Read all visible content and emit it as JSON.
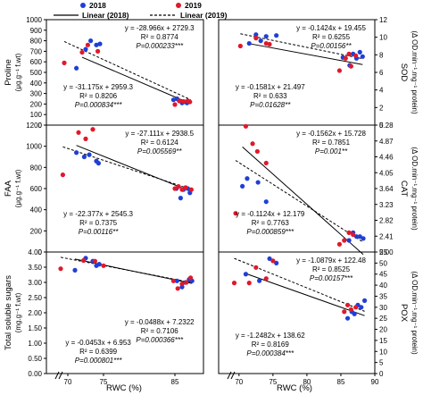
{
  "legend": {
    "series_2018": "2018",
    "series_2019": "2019",
    "color_2018": "#1f3fd6",
    "color_2019": "#e0192a",
    "linear_2018": "Linear (2018)",
    "linear_2019": "Linear (2019)"
  },
  "x_axis_label": "RWC (%)",
  "chart_data": [
    {
      "id": "proline",
      "type": "scatter",
      "col": 0,
      "row": 0,
      "ylabel": "Proline",
      "ylabel_unit": "(μg.g⁻¹ f.wt)",
      "xlim": [
        67,
        89
      ],
      "ylim": [
        0,
        1000
      ],
      "yticks": [
        0,
        100,
        200,
        300,
        400,
        500,
        600,
        700,
        800,
        900,
        1000
      ],
      "series": [
        {
          "name": "2018",
          "points": [
            [
              71.2,
              540
            ],
            [
              72.5,
              720
            ],
            [
              73.2,
              800
            ],
            [
              74.0,
              760
            ],
            [
              74.5,
              770
            ],
            [
              84.8,
              240
            ],
            [
              85.3,
              250
            ],
            [
              86.0,
              210
            ],
            [
              86.4,
              220
            ],
            [
              86.7,
              210
            ]
          ]
        },
        {
          "name": "2019",
          "points": [
            [
              69.5,
              590
            ],
            [
              72.0,
              690
            ],
            [
              72.8,
              760
            ],
            [
              74.2,
              700
            ],
            [
              85.0,
              195
            ],
            [
              85.6,
              230
            ],
            [
              86.2,
              225
            ],
            [
              86.8,
              230
            ],
            [
              87.1,
              220
            ]
          ]
        }
      ],
      "fits": [
        {
          "series": "2018",
          "eq": "y = -28.966x + 2729.3",
          "r2": "R² = 0.8774",
          "p": "P=0.000233***",
          "x": [
            72,
            87.2
          ]
        },
        {
          "series": "2019",
          "eq": "y = -31.175x + 2959.3",
          "r2": "R² = 0.8206",
          "p": "P=0.000834***",
          "x": [
            69.5,
            87.2
          ]
        }
      ],
      "eq_pos": [
        "top",
        "bottom"
      ]
    },
    {
      "id": "sod",
      "type": "scatter",
      "col": 1,
      "row": 0,
      "ylabel": "SOD",
      "ylabel_unit": "(Δ OD.min⁻¹.mg⁻¹ protein)",
      "xlim": [
        67,
        90
      ],
      "ylim": [
        0,
        12
      ],
      "yticks": [
        0,
        2,
        4,
        6,
        8,
        10,
        12
      ],
      "series": [
        {
          "name": "2018",
          "points": [
            [
              71.5,
              9.3
            ],
            [
              72.5,
              10.3
            ],
            [
              73.2,
              9.6
            ],
            [
              74.0,
              10.1
            ],
            [
              75.5,
              10.2
            ],
            [
              85.3,
              7.7
            ],
            [
              86.3,
              6.8
            ],
            [
              86.8,
              8.1
            ],
            [
              87.3,
              7.6
            ],
            [
              87.8,
              8.3
            ],
            [
              88.2,
              7.8
            ]
          ]
        },
        {
          "name": "2019",
          "points": [
            [
              70.2,
              9.0
            ],
            [
              72.5,
              9.9
            ],
            [
              74.0,
              9.3
            ],
            [
              74.5,
              9.2
            ],
            [
              84.8,
              6.2
            ],
            [
              85.7,
              7.6
            ],
            [
              86.2,
              8.1
            ],
            [
              86.5,
              6.7
            ],
            [
              87.2,
              7.9
            ]
          ]
        }
      ],
      "fits": [
        {
          "series": "2018",
          "eq": "y = -0.1424x + 19.455",
          "r2": "R² = 0.6255",
          "p": "P=0.00156**",
          "x": [
            71.5,
            88.2
          ]
        },
        {
          "series": "2019",
          "eq": "y = -0.1581x + 21.497",
          "r2": "R² = 0.633",
          "p": "P=0.01628**",
          "x": [
            70.2,
            88.2
          ]
        }
      ],
      "eq_pos": [
        "top",
        "bottom"
      ]
    },
    {
      "id": "faa",
      "type": "scatter",
      "col": 0,
      "row": 1,
      "ylabel": "FAA",
      "ylabel_unit": "(μg.g⁻¹ f.wt)",
      "xlim": [
        67,
        89
      ],
      "ylim": [
        0,
        1200
      ],
      "yticks": [
        0,
        200,
        400,
        600,
        800,
        1000,
        1200
      ],
      "series": [
        {
          "name": "2018",
          "points": [
            [
              71.2,
              940
            ],
            [
              72.3,
              900
            ],
            [
              73.0,
              920
            ],
            [
              74.0,
              860
            ],
            [
              74.3,
              840
            ],
            [
              85.2,
              600
            ],
            [
              85.8,
              510
            ],
            [
              86.2,
              590
            ],
            [
              86.8,
              600
            ],
            [
              87.1,
              560
            ]
          ]
        },
        {
          "name": "2019",
          "points": [
            [
              69.3,
              730
            ],
            [
              71.5,
              1130
            ],
            [
              72.5,
              1070
            ],
            [
              73.5,
              1160
            ],
            [
              85.0,
              600
            ],
            [
              85.5,
              620
            ],
            [
              86.0,
              590
            ],
            [
              86.5,
              610
            ],
            [
              87.3,
              590
            ]
          ]
        }
      ],
      "fits": [
        {
          "series": "2018",
          "eq": "y = -27.111x + 2938.5",
          "r2": "R² = 0.6124",
          "p": "P=0.005569**",
          "x": [
            71.2,
            87.2
          ]
        },
        {
          "series": "2019",
          "eq": "y = -22.377x + 2545.3",
          "r2": "R² = 0.7375",
          "p": "P=0.00116**",
          "x": [
            69.3,
            87.2
          ]
        }
      ],
      "eq_pos": [
        "top",
        "bottom"
      ]
    },
    {
      "id": "cat",
      "type": "scatter",
      "col": 1,
      "row": 1,
      "ylabel": "CAT",
      "ylabel_unit": "(Δ OD.min⁻¹.mg⁻¹ protein)",
      "xlim": [
        67,
        90
      ],
      "ylim": [
        2.0,
        5.28
      ],
      "yticks": [
        2.0,
        2.41,
        2.82,
        3.23,
        3.64,
        4.05,
        4.46,
        4.87,
        5.28
      ],
      "tick_labels": [
        "2.00",
        "2.41",
        "2.82",
        "3.23",
        "3.64",
        "4.05",
        "4.46",
        "4.87",
        "5.28"
      ],
      "series": [
        {
          "name": "2018",
          "points": [
            [
              70.5,
              3.7
            ],
            [
              71.2,
              3.9
            ],
            [
              72.8,
              3.8
            ],
            [
              74.0,
              3.3
            ],
            [
              86.2,
              2.3
            ],
            [
              86.8,
              2.5
            ],
            [
              87.3,
              2.4
            ],
            [
              87.8,
              2.4
            ],
            [
              88.3,
              2.35
            ]
          ]
        },
        {
          "name": "2019",
          "points": [
            [
              69.5,
              3.0
            ],
            [
              71.0,
              5.25
            ],
            [
              72.0,
              4.8
            ],
            [
              72.7,
              4.6
            ],
            [
              74.0,
              4.3
            ],
            [
              84.8,
              2.2
            ],
            [
              85.5,
              2.3
            ],
            [
              86.2,
              2.5
            ],
            [
              86.8,
              2.45
            ]
          ]
        }
      ],
      "fits": [
        {
          "series": "2018",
          "eq": "y = -0.1562x + 15.728",
          "r2": "R² = 0.7851",
          "p": "P=0.001**",
          "x": [
            70.5,
            88.3
          ]
        },
        {
          "series": "2019",
          "eq": "y = -0.1124x + 12.179",
          "r2": "R² = 0.7763",
          "p": "P=0.000859***",
          "x": [
            69.5,
            88.3
          ]
        }
      ],
      "eq_pos": [
        "top",
        "bottom"
      ]
    },
    {
      "id": "sugars",
      "type": "scatter",
      "col": 0,
      "row": 2,
      "ylabel": "Total soluble sugars",
      "ylabel_unit": "(mg.g⁻¹ f.wt)",
      "xlim": [
        67,
        89
      ],
      "ylim": [
        0,
        4.0
      ],
      "yticks": [
        0,
        0.5,
        1.0,
        1.5,
        2.0,
        2.5,
        3.0,
        3.5,
        4.0
      ],
      "tick_labels": [
        "0.00",
        "0.50",
        "1.00",
        "1.50",
        "2.00",
        "2.50",
        "3.00",
        "3.50",
        "4.00"
      ],
      "series": [
        {
          "name": "2018",
          "points": [
            [
              71.0,
              3.4
            ],
            [
              72.5,
              3.8
            ],
            [
              73.5,
              3.7
            ],
            [
              74.0,
              3.55
            ],
            [
              74.4,
              3.6
            ],
            [
              85.3,
              3.05
            ],
            [
              86.0,
              2.85
            ],
            [
              86.5,
              3.0
            ],
            [
              87.0,
              3.1
            ],
            [
              87.4,
              3.05
            ]
          ]
        },
        {
          "name": "2019",
          "points": [
            [
              69.0,
              3.45
            ],
            [
              72.2,
              3.72
            ],
            [
              73.8,
              3.7
            ],
            [
              75.0,
              3.55
            ],
            [
              84.8,
              3.05
            ],
            [
              85.4,
              2.8
            ],
            [
              86.0,
              2.95
            ],
            [
              86.6,
              3.0
            ],
            [
              87.2,
              3.15
            ]
          ]
        }
      ],
      "fits": [
        {
          "series": "2018",
          "eq": "y = -0.0488x + 7.2322",
          "r2": "R² = 0.7106",
          "p": "P=0.000366***",
          "x": [
            71.0,
            87.4
          ]
        },
        {
          "series": "2019",
          "eq": "y = -0.0453x + 6.953",
          "r2": "R² = 0.6399",
          "p": "P=0.000801***",
          "x": [
            69.0,
            87.4
          ]
        }
      ],
      "eq_pos": [
        "bottom-right",
        "bottom-left"
      ]
    },
    {
      "id": "pox",
      "type": "scatter",
      "col": 1,
      "row": 2,
      "ylabel": "POX",
      "ylabel_unit": "(Δ OD.min⁻¹.mg⁻¹ protein)",
      "xlim": [
        67,
        90
      ],
      "ylim": [
        0,
        55
      ],
      "yticks": [
        0,
        5,
        10,
        15,
        20,
        25,
        30,
        35,
        40,
        45,
        50,
        55
      ],
      "series": [
        {
          "name": "2018",
          "points": [
            [
              71.0,
              45
            ],
            [
              73.0,
              42
            ],
            [
              74.5,
              52
            ],
            [
              75.5,
              50
            ],
            [
              86.0,
              25
            ],
            [
              86.6,
              28
            ],
            [
              87.0,
              27
            ],
            [
              87.5,
              31
            ],
            [
              88.0,
              30
            ],
            [
              88.5,
              33
            ]
          ]
        },
        {
          "name": "2019",
          "points": [
            [
              69.3,
              41
            ],
            [
              71.5,
              41
            ],
            [
              72.5,
              48
            ],
            [
              74.0,
              43
            ],
            [
              75.0,
              51
            ],
            [
              85.5,
              28
            ],
            [
              86.0,
              31
            ],
            [
              86.5,
              29
            ],
            [
              87.2,
              30
            ]
          ]
        }
      ],
      "fits": [
        {
          "series": "2018",
          "eq": "y = -1.0879x + 122.48",
          "r2": "R² = 0.8525",
          "p": "P=0.00157***",
          "x": [
            71.0,
            88.5
          ]
        },
        {
          "series": "2019",
          "eq": "y = -1.2482x + 138.62",
          "r2": "R² = 0.8169",
          "p": "P=0.000384***",
          "x": [
            69.3,
            88.5
          ]
        }
      ],
      "eq_pos": [
        "top",
        "bottom"
      ]
    }
  ],
  "x_ticks_left": [
    70,
    75,
    85
  ],
  "x_ticks_right": [
    70,
    75,
    80,
    85,
    90
  ]
}
